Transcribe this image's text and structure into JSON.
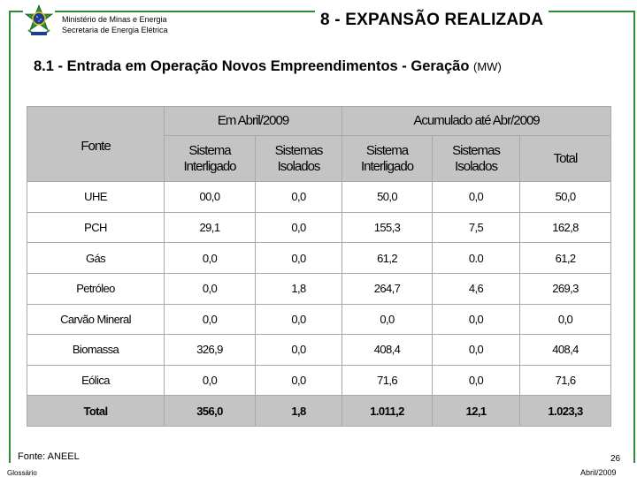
{
  "header": {
    "ministry": "Ministério de Minas e Energia",
    "secretariat": "Secretaria de Energia Elétrica",
    "title": "8 - EXPANSÃO REALIZADA",
    "logo_icon": "brazil-coat-of-arms-icon"
  },
  "subtitle": {
    "text": "8.1 - Entrada em Operação Novos Empreendimentos - Geração",
    "unit": "(MW)"
  },
  "table": {
    "fonte_label": "Fonte",
    "group_month": "Em Abril/2009",
    "group_accum": "Acumulado até Abr/2009",
    "col_interligado": "Sistema Interligado",
    "col_isolados": "Sistemas Isolados",
    "col_total": "Total",
    "rows": [
      {
        "fonte": "UHE",
        "m_int": "00,0",
        "m_iso": "0,0",
        "a_int": "50,0",
        "a_iso": "0,0",
        "total": "50,0"
      },
      {
        "fonte": "PCH",
        "m_int": "29,1",
        "m_iso": "0,0",
        "a_int": "155,3",
        "a_iso": "7,5",
        "total": "162,8"
      },
      {
        "fonte": "Gás",
        "m_int": "0,0",
        "m_iso": "0,0",
        "a_int": "61,2",
        "a_iso": "0.0",
        "total": "61,2"
      },
      {
        "fonte": "Petróleo",
        "m_int": "0,0",
        "m_iso": "1,8",
        "a_int": "264,7",
        "a_iso": "4,6",
        "total": "269,3"
      },
      {
        "fonte": "Carvão Mineral",
        "m_int": "0,0",
        "m_iso": "0,0",
        "a_int": "0,0",
        "a_iso": "0,0",
        "total": "0,0"
      },
      {
        "fonte": "Biomassa",
        "m_int": "326,9",
        "m_iso": "0,0",
        "a_int": "408,4",
        "a_iso": "0,0",
        "total": "408,4"
      },
      {
        "fonte": "Eólica",
        "m_int": "0,0",
        "m_iso": "0,0",
        "a_int": "71,6",
        "a_iso": "0,0",
        "total": "71,6"
      }
    ],
    "total_row": {
      "fonte": "Total",
      "m_int": "356,0",
      "m_iso": "1,8",
      "a_int": "1.011,2",
      "a_iso": "12,1",
      "total": "1.023,3"
    }
  },
  "footer": {
    "source": "Fonte: ANEEL",
    "glossary": "Glossário",
    "page_number": "26",
    "date": "Abril/2009"
  },
  "colors": {
    "frame": "#2e8b3a",
    "header_fill": "#c4c4c4"
  }
}
